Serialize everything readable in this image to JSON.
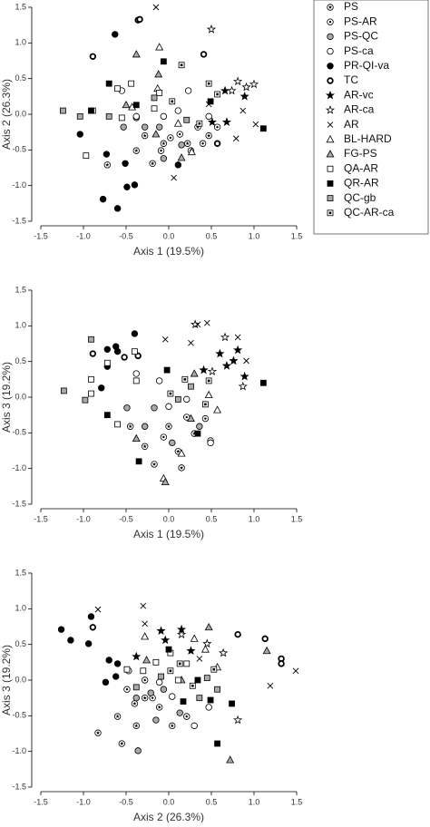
{
  "legend": [
    {
      "name": "PS",
      "marker": "circle-star",
      "fill": "#ffffff"
    },
    {
      "name": "PS-AR",
      "marker": "circle-dot",
      "fill": "#ffffff"
    },
    {
      "name": "PS-QC",
      "marker": "circle",
      "fill": "#aaaaaa"
    },
    {
      "name": "PS-ca",
      "marker": "circle",
      "fill": "#ffffff"
    },
    {
      "name": "PR-QI-va",
      "marker": "circle",
      "fill": "#000000"
    },
    {
      "name": "TC",
      "marker": "ring",
      "fill": "#ffffff"
    },
    {
      "name": "AR-vc",
      "marker": "star",
      "fill": "#000000"
    },
    {
      "name": "AR-ca",
      "marker": "star",
      "fill": "#ffffff"
    },
    {
      "name": "AR",
      "marker": "cross",
      "fill": "#ffffff"
    },
    {
      "name": "BL-HARD",
      "marker": "triangle",
      "fill": "#ffffff"
    },
    {
      "name": "FG-PS",
      "marker": "triangle",
      "fill": "#aaaaaa"
    },
    {
      "name": "QA-AR",
      "marker": "square",
      "fill": "#ffffff"
    },
    {
      "name": "QR-AR",
      "marker": "square",
      "fill": "#000000"
    },
    {
      "name": "QC-gb",
      "marker": "square",
      "fill": "#aaaaaa"
    },
    {
      "name": "QC-AR-ca",
      "marker": "square-dot",
      "fill": "#ffffff"
    }
  ],
  "chart_data": [
    {
      "type": "scatter",
      "xlabel": "Axis 1 (19.5%)",
      "ylabel": "Axis 2 (26.3%)",
      "xlim": [
        -1.5,
        1.5
      ],
      "ylim": [
        -1.5,
        1.5
      ],
      "xticks": [
        -1.5,
        {
          "value": -1,
          "label": "-1.0"
        },
        -0.5,
        {
          "value": 0,
          "label": "0.0"
        },
        0.5,
        {
          "value": 1,
          "label": "1.0"
        },
        1.5
      ],
      "yticks": [
        -1.5,
        {
          "value": -1,
          "label": "-1.0"
        },
        -0.5,
        {
          "value": 0,
          "label": "0.0"
        },
        0.5,
        {
          "value": 1,
          "label": "1.0"
        },
        1.5
      ],
      "series": [
        {
          "x": [
            -0.19,
            -0.06,
            0.22,
            0.47,
            0.26,
            -0.38,
            -0.72,
            0.34,
            -0.28
          ],
          "y": [
            -0.69,
            -0.41,
            -0.41,
            -0.3,
            -0.51,
            -0.51,
            -0.71,
            -0.18,
            -0.3
          ]
        },
        {
          "x": [
            0.02,
            -0.09,
            0.13,
            0.4,
            0.57
          ],
          "y": [
            -0.33,
            -0.51,
            -0.28,
            -0.41,
            -0.18
          ]
        },
        {
          "x": [
            -0.38,
            -0.28,
            -0.06,
            0.15,
            -0.53,
            -0.11
          ],
          "y": [
            -0.05,
            -0.18,
            -0.62,
            -0.43,
            -0.18,
            -0.18
          ]
        },
        {
          "x": [
            -0.55,
            0.23,
            0.47,
            -0.38,
            -0.06,
            0.11
          ],
          "y": [
            0.33,
            0.33,
            -0.03,
            -0.03,
            -0.03,
            0.05
          ]
        },
        {
          "x": [
            -0.63,
            -1.04,
            -0.73,
            -0.51,
            -0.77,
            -0.6,
            -0.4,
            -0.49,
            0.11
          ],
          "y": [
            1.12,
            -0.28,
            -0.56,
            -0.69,
            -1.19,
            -1.32,
            -0.99,
            -1.02,
            -0.71
          ]
        },
        {
          "x": [
            -0.89,
            -0.36,
            -0.34,
            0.57,
            0.41
          ],
          "y": [
            0.81,
            1.32,
            1.33,
            -0.41,
            0.84
          ]
        },
        {
          "x": [
            0.66,
            0.89,
            0.68,
            0.51
          ],
          "y": [
            0.33,
            0.25,
            -0.11,
            -0.11
          ]
        },
        {
          "x": [
            0.5,
            1.0,
            0.81,
            0.91,
            0.74
          ],
          "y": [
            1.19,
            0.42,
            0.46,
            0.38,
            0.33
          ]
        },
        {
          "x": [
            -0.15,
            0.47,
            1.02,
            0.79,
            0.06,
            0.87
          ],
          "y": [
            1.5,
            0.14,
            -0.14,
            -0.34,
            -0.89,
            0.05
          ]
        },
        {
          "x": [
            -0.43,
            -0.13,
            0.11,
            0.27,
            -0.11
          ],
          "y": [
            0.1,
            0.36,
            -0.13,
            -0.53,
            0.94
          ]
        },
        {
          "x": [
            -0.38,
            -0.12,
            -0.5,
            -0.15,
            0.15
          ],
          "y": [
            0.84,
            0.56,
            0.13,
            -0.28,
            -0.61
          ]
        },
        {
          "x": [
            -0.89,
            -0.97,
            -0.6,
            -0.11,
            -0.55,
            -0.17,
            -0.44
          ],
          "y": [
            0.05,
            -0.58,
            0.36,
            0.3,
            -0.05,
            0.08,
            0.43
          ]
        },
        {
          "x": [
            -0.7,
            -0.91,
            -0.06,
            1.11,
            0.49,
            -0.38
          ],
          "y": [
            0.43,
            0.05,
            0.74,
            -0.2,
            0.18,
            0.13
          ]
        },
        {
          "x": [
            -1.24,
            -1.04,
            -0.7,
            0.21,
            -0.17
          ],
          "y": [
            0.05,
            -0.03,
            -0.03,
            -0.08,
            0.23
          ]
        },
        {
          "x": [
            0.47,
            0.15,
            0.57,
            0.36,
            0.04
          ],
          "y": [
            0.43,
            0.69,
            0.28,
            -0.13,
            0.18
          ]
        }
      ]
    },
    {
      "type": "scatter",
      "xlabel": "Axis 1 (19.5%)",
      "ylabel": "Axis 3 (19.2%)",
      "xlim": [
        -1.5,
        1.5
      ],
      "ylim": [
        -1.5,
        1.5
      ],
      "xticks": [
        -1.5,
        {
          "value": -1,
          "label": "-1.0"
        },
        -0.5,
        {
          "value": 0,
          "label": "0.0"
        },
        0.5,
        {
          "value": 1,
          "label": "1.0"
        },
        1.5
      ],
      "yticks": [
        -1.5,
        {
          "value": -1,
          "label": "-1.0"
        },
        -0.5,
        {
          "value": 0,
          "label": "0.0"
        },
        0.5,
        {
          "value": 1,
          "label": "1.0"
        },
        1.5
      ],
      "series": [
        {
          "x": [
            -0.28,
            -0.17,
            0.15,
            0.3,
            -0.45,
            0,
            0.11
          ],
          "y": [
            -0.69,
            -0.94,
            -0.99,
            -0.51,
            -0.41,
            -0.41,
            -0.76
          ]
        },
        {
          "x": [
            -0.06,
            0.21,
            0.43,
            0.49
          ],
          "y": [
            -0.56,
            -0.28,
            -0.3,
            -0.61
          ]
        },
        {
          "x": [
            -0.28,
            -0.17,
            -0.49,
            0.36,
            0.04
          ],
          "y": [
            -0.41,
            -0.15,
            -0.15,
            -0.41,
            -0.64
          ]
        },
        {
          "x": [
            -0.38,
            0.49,
            -0.11,
            0,
            0.21
          ],
          "y": [
            0.33,
            -0.64,
            0.23,
            -0.13,
            -0.03
          ]
        },
        {
          "x": [
            -0.72,
            -0.62,
            -0.72,
            -0.4,
            -0.6,
            -0.79
          ],
          "y": [
            0.67,
            0.71,
            0.43,
            0.89,
            0.64,
            0.13
          ]
        },
        {
          "x": [
            -0.89,
            -0.36,
            -0.52
          ],
          "y": [
            0.61,
            0.58,
            0.56
          ]
        },
        {
          "x": [
            0.6,
            0.81,
            0.68,
            0.41,
            0.89,
            0.76
          ],
          "y": [
            0.61,
            0.66,
            0.44,
            0.38,
            0.29,
            0.51
          ]
        },
        {
          "x": [
            0.31,
            0.66,
            0.87,
            0.51
          ],
          "y": [
            1.02,
            0.84,
            0.15,
            0.36
          ]
        },
        {
          "x": [
            0.34,
            0.45,
            -0.04,
            0.81,
            0.91,
            0.26
          ],
          "y": [
            1.02,
            1.04,
            0.81,
            0.84,
            0.51,
            0.76
          ]
        },
        {
          "x": [
            -0.06,
            0.47,
            0.15,
            0.57
          ],
          "y": [
            -1.14,
            0.03,
            -0.79,
            -0.18
          ]
        },
        {
          "x": [
            -0.04,
            -0.38,
            0.26,
            0.3
          ],
          "y": [
            -1.19,
            -0.58,
            -0.3,
            0.33
          ]
        },
        {
          "x": [
            -0.72,
            -0.4,
            -0.91,
            -0.6,
            -0.38,
            -0.91
          ],
          "y": [
            0.48,
            0.64,
            0.05,
            -0.38,
            0.23,
            0.25
          ]
        },
        {
          "x": [
            -0.35,
            -0.72,
            1.11,
            -0.02,
            0.34
          ],
          "y": [
            -0.9,
            -0.25,
            0.2,
            0.38,
            -0.51
          ]
        },
        {
          "x": [
            -1.23,
            -0.98,
            -0.91,
            0.11,
            0.26
          ],
          "y": [
            0.09,
            -0.04,
            0.81,
            -0.03,
            0.15
          ]
        },
        {
          "x": [
            0.47,
            0.19,
            0.43,
            0.02
          ],
          "y": [
            0.23,
            0.25,
            -0.1,
            0.05
          ]
        }
      ]
    },
    {
      "type": "scatter",
      "xlabel": "Axis 2 (26.3%)",
      "ylabel": "Axis 3 (19.2%)",
      "xlim": [
        -1.5,
        1.5
      ],
      "ylim": [
        -1.5,
        1.5
      ],
      "xticks": [
        -1.5,
        {
          "value": -1,
          "label": "-1.0"
        },
        -0.5,
        {
          "value": 0,
          "label": "0.0"
        },
        0.5,
        {
          "value": 1,
          "label": "1.0"
        },
        1.5
      ],
      "yticks": [
        -1.5,
        {
          "value": -1,
          "label": "-1.0"
        },
        -0.5,
        {
          "value": 0,
          "label": "0.0"
        },
        0.5,
        {
          "value": 1,
          "label": "1.0"
        },
        1.5
      ],
      "series": [
        {
          "x": [
            -0.83,
            -0.6,
            -0.55,
            -0.38,
            -0.28,
            -0.11,
            0.04,
            -0.4
          ],
          "y": [
            -0.74,
            -0.51,
            -0.89,
            -0.64,
            -0.25,
            -0.38,
            -0.64,
            -0.33
          ]
        },
        {
          "x": [
            -0.49,
            -0.19,
            0.21,
            -0.28
          ],
          "y": [
            -0.13,
            -0.25,
            -0.51,
            0
          ]
        },
        {
          "x": [
            -0.38,
            -0.21,
            -0.06,
            0.13,
            -0.15,
            -0.36
          ],
          "y": [
            -0.25,
            -0.18,
            -0.13,
            -0.46,
            -0.56,
            -0.99
          ]
        },
        {
          "x": [
            0.3,
            0.47,
            0.04,
            -0.47,
            -0.11
          ],
          "y": [
            -0.64,
            -0.38,
            -0.23,
            0.13,
            -0.03
          ]
        },
        {
          "x": [
            -1.26,
            -1.15,
            -0.91,
            -0.94,
            -0.7,
            -0.62,
            -0.74,
            -0.6
          ],
          "y": [
            0.71,
            0.56,
            0.89,
            0.51,
            0.28,
            0.05,
            -0.03,
            0.23
          ]
        },
        {
          "x": [
            -0.89,
            0.81,
            1.13,
            1.32,
            1.32
          ],
          "y": [
            0.74,
            0.64,
            0.58,
            0.3,
            0.23
          ]
        },
        {
          "x": [
            -0.09,
            -0.04,
            0.15,
            0.26,
            -0.38
          ],
          "y": [
            0.69,
            0.56,
            0.71,
            0.41,
            0.33
          ]
        },
        {
          "x": [
            0.64,
            0.81,
            0.15,
            0.45
          ],
          "y": [
            0.38,
            -0.56,
            0.64,
            0.51
          ]
        },
        {
          "x": [
            -0.83,
            -0.3,
            1.49,
            1.19,
            -0.28,
            0.36
          ],
          "y": [
            0.99,
            1.04,
            0.13,
            -0.08,
            0.79,
            0.3
          ]
        },
        {
          "x": [
            -0.28,
            0.57,
            0.3,
            0.43
          ],
          "y": [
            0.61,
            0.18,
            0.58,
            0.43
          ]
        },
        {
          "x": [
            0.72,
            1.15,
            0.15,
            0.47,
            -0.26
          ],
          "y": [
            -1.12,
            0.41,
            0,
            0.74,
            0.28
          ]
        },
        {
          "x": [
            -0.49,
            -0.3,
            -0.15,
            0.11,
            0.02,
            0.21
          ],
          "y": [
            0.15,
            0.13,
            0.25,
            0,
            0.38,
            0.23
          ]
        },
        {
          "x": [
            0.17,
            0.34,
            0.74,
            0.57,
            0.49,
            0
          ],
          "y": [
            -0.3,
            0,
            -0.33,
            -0.89,
            -0.28,
            0.43
          ]
        },
        {
          "x": [
            -0.38,
            0.45,
            0.57,
            0.36,
            -0.09
          ],
          "y": [
            -0.1,
            0.03,
            -0.13,
            -0.25,
            0.05
          ]
        },
        {
          "x": [
            0.02,
            0.13,
            0.28,
            0.53
          ],
          "y": [
            0.13,
            0.23,
            -0.08,
            0.15
          ]
        }
      ]
    }
  ]
}
